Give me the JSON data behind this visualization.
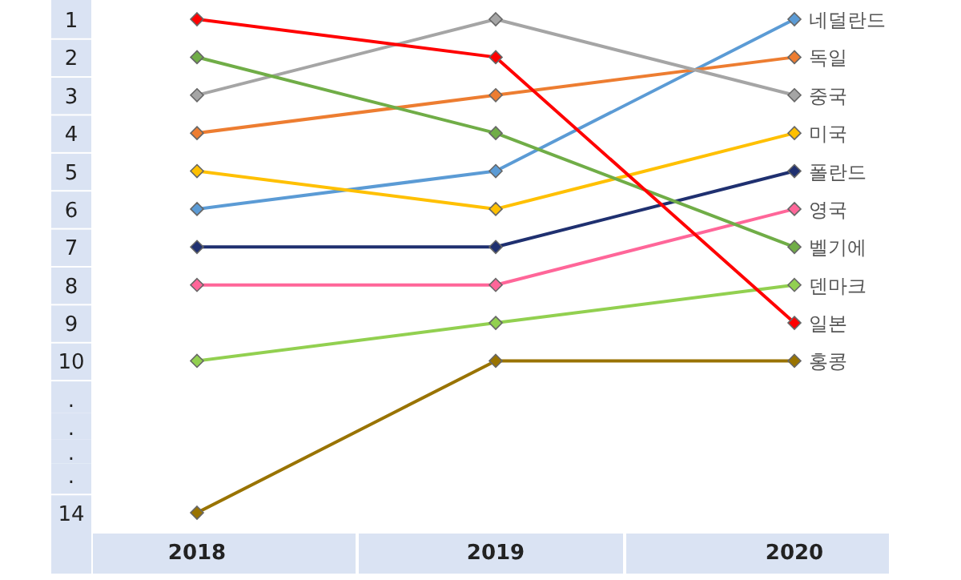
{
  "chart_data": {
    "type": "line",
    "categories": [
      "2018",
      "2019",
      "2020"
    ],
    "ylim": [
      14,
      1
    ],
    "yticks": [
      1,
      2,
      3,
      4,
      5,
      6,
      7,
      8,
      9,
      10,
      {
        "value": 11,
        "label": "."
      },
      {
        "value": 11.75,
        "label": "."
      },
      {
        "value": 12.4,
        "label": "."
      },
      {
        "value": 13,
        "label": "."
      },
      14
    ],
    "grid": false,
    "legend": false,
    "marker": "diamond",
    "line_style": "solid",
    "series": [
      {
        "name": "네덜란드",
        "color": "#5b9bd5",
        "values": [
          6,
          5,
          1
        ]
      },
      {
        "name": "독일",
        "color": "#ed7d31",
        "values": [
          4,
          3,
          2
        ]
      },
      {
        "name": "중국",
        "color": "#a5a5a5",
        "values": [
          3,
          1,
          3
        ]
      },
      {
        "name": "미국",
        "color": "#ffc000",
        "values": [
          5,
          6,
          4
        ]
      },
      {
        "name": "폴란드",
        "color": "#1f3070",
        "values": [
          7,
          7,
          5
        ]
      },
      {
        "name": "영국",
        "color": "#ff6699",
        "values": [
          8,
          8,
          6
        ]
      },
      {
        "name": "벨기에",
        "color": "#70ad47",
        "values": [
          2,
          4,
          7
        ]
      },
      {
        "name": "덴마크",
        "color": "#92d050",
        "values": [
          10,
          9,
          8
        ]
      },
      {
        "name": "일본",
        "color": "#ff0000",
        "values": [
          1,
          2,
          9
        ]
      },
      {
        "name": "홍콩",
        "color": "#997300",
        "values": [
          14,
          10,
          10
        ]
      }
    ]
  }
}
